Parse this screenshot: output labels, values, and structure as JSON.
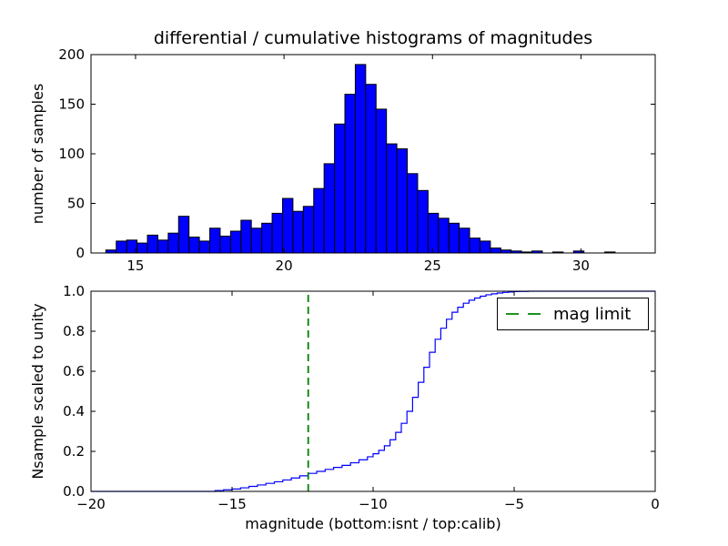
{
  "figure": {
    "background": "#ffffff",
    "spine_color": "#000000"
  },
  "chart_data": [
    {
      "type": "bar",
      "subtype": "histogram",
      "title": "differential / cumulative histograms of magnitudes",
      "xlabel": "",
      "ylabel": "number of samples",
      "xlim": [
        13.5,
        32.5
      ],
      "ylim": [
        0,
        200
      ],
      "xticks": [
        15,
        20,
        25,
        30
      ],
      "xticklabels": [
        "15",
        "20",
        "25",
        "30"
      ],
      "yticks": [
        0,
        50,
        100,
        150,
        200
      ],
      "yticklabels": [
        "0",
        "50",
        "100",
        "150",
        "200"
      ],
      "grid": false,
      "bar_color": "#0000ff",
      "bar_edge_color": "#000000",
      "bin_start": 14.0,
      "bin_width": 0.35,
      "counts": [
        3,
        12,
        13,
        10,
        18,
        13,
        20,
        37,
        16,
        12,
        25,
        17,
        22,
        33,
        25,
        30,
        40,
        55,
        42,
        47,
        65,
        90,
        130,
        160,
        190,
        170,
        145,
        110,
        105,
        80,
        63,
        40,
        35,
        30,
        25,
        15,
        12,
        5,
        3,
        2,
        1,
        2,
        0,
        1,
        0,
        2,
        0,
        0,
        1,
        0
      ]
    },
    {
      "type": "line",
      "subtype": "cumulative-step",
      "title": "",
      "xlabel": "magnitude (bottom:isnt / top:calib)",
      "ylabel": "Nsample scaled to unity",
      "xlim": [
        -20,
        0
      ],
      "ylim": [
        0.0,
        1.0
      ],
      "xticks": [
        -20,
        -15,
        -10,
        -5,
        0
      ],
      "xticklabels": [
        "−20",
        "−15",
        "−10",
        "−5",
        "0"
      ],
      "yticks": [
        0.0,
        0.2,
        0.4,
        0.6,
        0.8,
        1.0
      ],
      "yticklabels": [
        "0.0",
        "0.2",
        "0.4",
        "0.6",
        "0.8",
        "1.0"
      ],
      "grid": false,
      "line_color": "#0000ff",
      "points": [
        [
          -20,
          0
        ],
        [
          -15.6,
          0.004
        ],
        [
          -15.3,
          0.008
        ],
        [
          -15.0,
          0.012
        ],
        [
          -14.7,
          0.018
        ],
        [
          -14.4,
          0.025
        ],
        [
          -14.1,
          0.032
        ],
        [
          -13.8,
          0.04
        ],
        [
          -13.5,
          0.048
        ],
        [
          -13.2,
          0.057
        ],
        [
          -12.9,
          0.067
        ],
        [
          -12.6,
          0.078
        ],
        [
          -12.3,
          0.09
        ],
        [
          -12.0,
          0.1
        ],
        [
          -11.7,
          0.11
        ],
        [
          -11.4,
          0.12
        ],
        [
          -11.1,
          0.13
        ],
        [
          -10.8,
          0.143
        ],
        [
          -10.5,
          0.158
        ],
        [
          -10.2,
          0.173
        ],
        [
          -10.0,
          0.188
        ],
        [
          -9.8,
          0.205
        ],
        [
          -9.6,
          0.228
        ],
        [
          -9.4,
          0.258
        ],
        [
          -9.2,
          0.295
        ],
        [
          -9.0,
          0.34
        ],
        [
          -8.8,
          0.4
        ],
        [
          -8.6,
          0.47
        ],
        [
          -8.4,
          0.545
        ],
        [
          -8.2,
          0.62
        ],
        [
          -8.0,
          0.695
        ],
        [
          -7.8,
          0.76
        ],
        [
          -7.6,
          0.815
        ],
        [
          -7.4,
          0.86
        ],
        [
          -7.2,
          0.895
        ],
        [
          -7.0,
          0.92
        ],
        [
          -6.8,
          0.94
        ],
        [
          -6.6,
          0.955
        ],
        [
          -6.4,
          0.966
        ],
        [
          -6.2,
          0.975
        ],
        [
          -6.0,
          0.982
        ],
        [
          -5.8,
          0.987
        ],
        [
          -5.6,
          0.991
        ],
        [
          -5.4,
          0.994
        ],
        [
          -5.2,
          0.996
        ],
        [
          -5.0,
          0.998
        ],
        [
          -4.8,
          0.999
        ],
        [
          -4.5,
          1.0
        ],
        [
          0,
          1.0
        ]
      ],
      "vline": {
        "x": -12.3,
        "color": "#008000",
        "style": "dashed",
        "label": "mag limit"
      },
      "legend": {
        "position": "upper right",
        "entries": [
          {
            "label": "mag limit",
            "color": "#008000",
            "style": "dashed"
          }
        ]
      }
    }
  ]
}
